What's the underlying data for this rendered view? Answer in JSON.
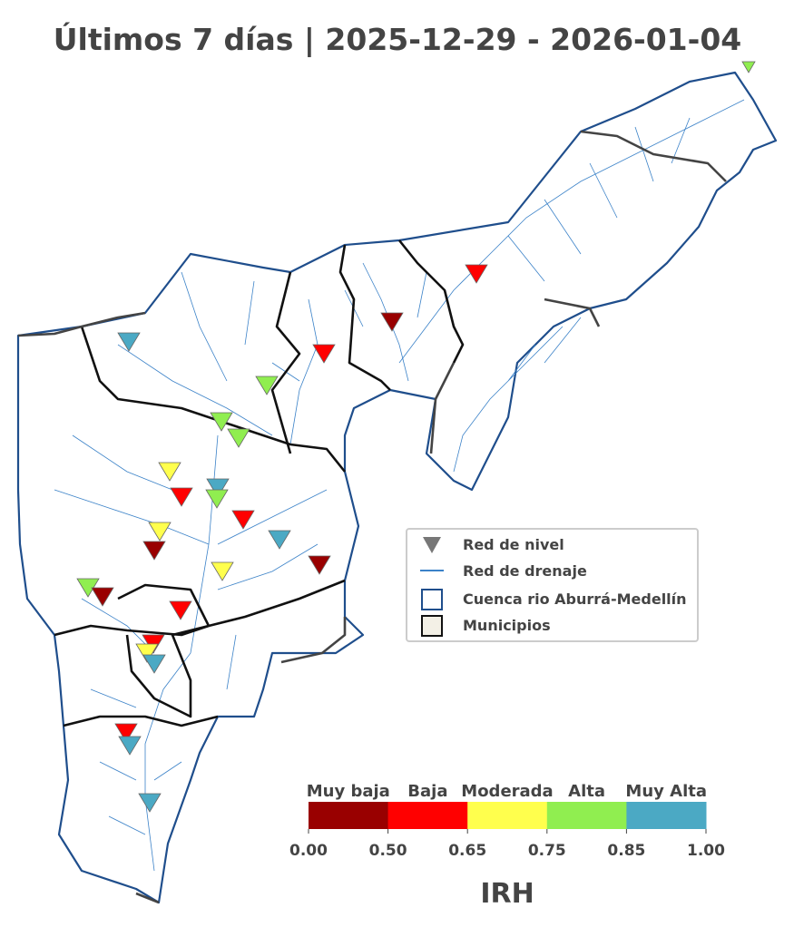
{
  "title": "Últimos 7 días | 2025-12-29 - 2026-01-04",
  "legend": {
    "items": [
      "Red de nivel",
      "Red de drenaje",
      "Cuenca rio Aburrá-Medellín",
      "Municipios"
    ]
  },
  "colorbar": {
    "categories": [
      "Muy baja",
      "Baja",
      "Moderada",
      "Alta",
      "Muy Alta"
    ],
    "colors": [
      "#990000",
      "#ff0000",
      "#ffff4d",
      "#90ee50",
      "#4ba9c4"
    ],
    "ticks": [
      {
        "value": 0,
        "label": "0.00"
      },
      {
        "value": 0.5,
        "label": "0.50"
      },
      {
        "value": 0.65,
        "label": "0.65"
      },
      {
        "value": 0.75,
        "label": "0.75"
      },
      {
        "value": 0.85,
        "label": "0.85"
      },
      {
        "value": 1,
        "label": "1.00"
      }
    ],
    "label": "IRH"
  }
}
